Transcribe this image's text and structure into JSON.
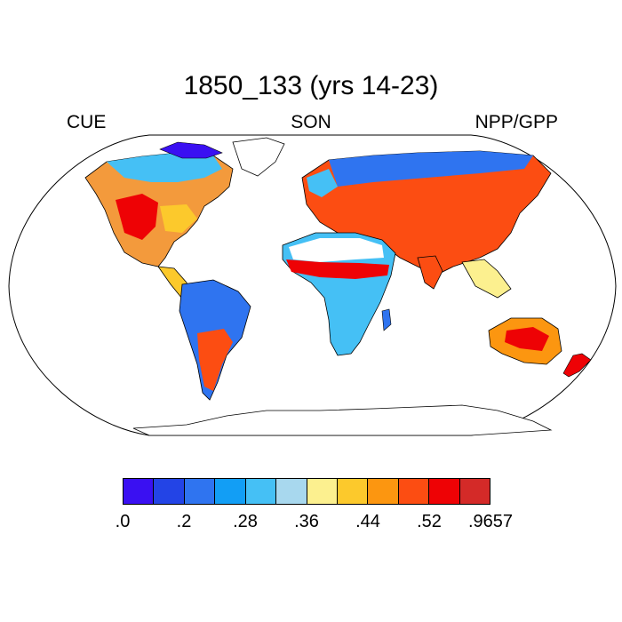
{
  "map": {
    "title": "1850_133 (yrs 14-23)",
    "left_label": "CUE",
    "center_label": "SON",
    "right_label": "NPP/GPP",
    "projection": "robinson"
  },
  "colorbar": {
    "colors": [
      "#3a10f2",
      "#2344e6",
      "#2f74f0",
      "#129ef5",
      "#45c0f5",
      "#a8d8ee",
      "#fcf08f",
      "#fcc92c",
      "#fc9610",
      "#fc4d12",
      "#ee0205",
      "#d42a28"
    ],
    "labels": [
      ".0",
      ".2",
      ".28",
      ".36",
      ".44",
      ".52",
      ".9657"
    ]
  }
}
